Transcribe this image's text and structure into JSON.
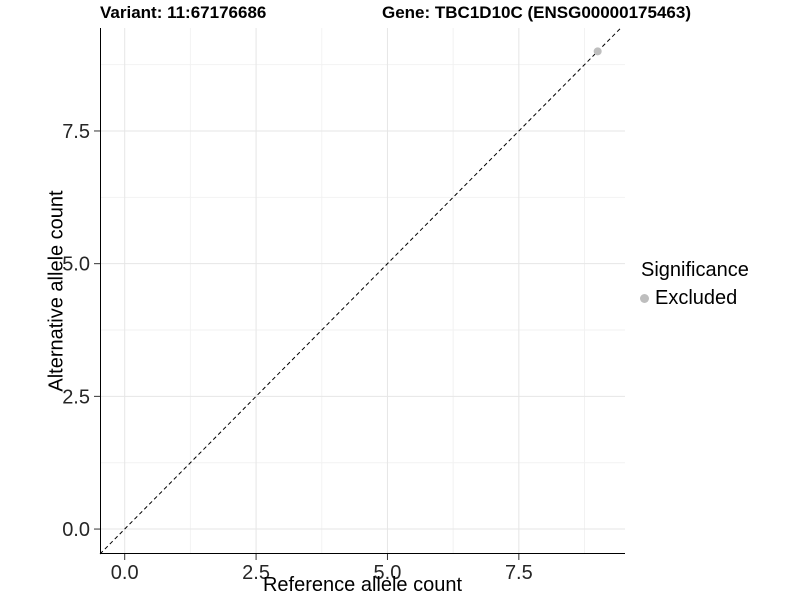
{
  "header": {
    "variant_title": "Variant: 11:67176686",
    "gene_title": "Gene: TBC1D10C (ENSG00000175463)"
  },
  "chart_data": {
    "type": "scatter",
    "xlabel": "Reference allele count",
    "ylabel": "Alternative allele count",
    "xlim": [
      -0.47,
      9.52
    ],
    "ylim": [
      -0.47,
      9.44
    ],
    "x_ticks": {
      "values": [
        0,
        2.5,
        5,
        7.5
      ],
      "labels": [
        "0.0",
        "2.5",
        "5.0",
        "7.5"
      ]
    },
    "y_ticks": {
      "values": [
        0,
        2.5,
        5,
        7.5
      ],
      "labels": [
        "0.0",
        "2.5",
        "5.0",
        "7.5"
      ]
    },
    "minor_ticks": [
      1.25,
      3.75,
      6.25,
      8.75
    ],
    "grid": {
      "major_color": "#e6e6e6",
      "minor_color": "#f2f2f2",
      "background": "#ffffff"
    },
    "axis_color": "#000000",
    "tick_label_color": "#262626",
    "reference_line": {
      "type": "identity",
      "slope": 1,
      "intercept": 0,
      "linetype": "dashed",
      "color": "#000000"
    },
    "series": [
      {
        "name": "Excluded",
        "color": "#bebebe",
        "points": [
          {
            "x": 9,
            "y": 9
          }
        ]
      }
    ],
    "legend": {
      "title": "Significance",
      "position": "right",
      "entries": [
        {
          "label": "Excluded",
          "color": "#bebebe"
        }
      ]
    }
  }
}
